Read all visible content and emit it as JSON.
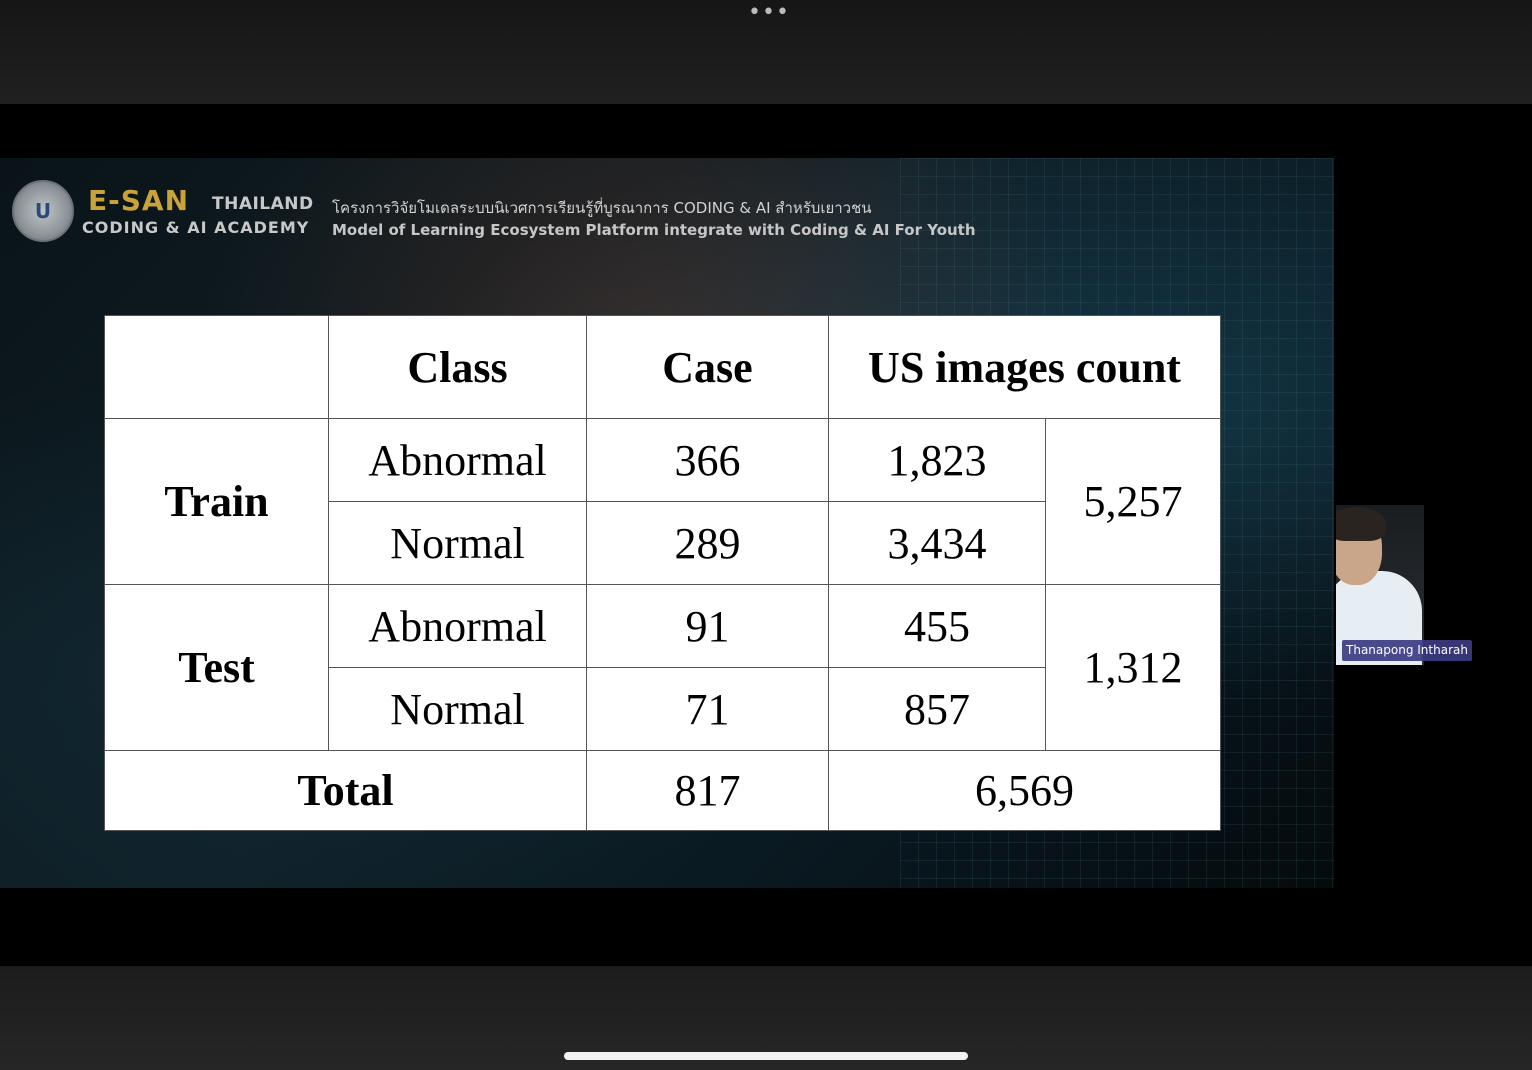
{
  "slide": {
    "brand_esan": "E-SAN",
    "brand_thailand": "THAILAND",
    "brand_academy": "CODING & AI ACADEMY",
    "header_thai": "โครงการวิจัยโมเดลระบบนิเวศการเรียนรู้ที่บูรณาการ CODING & AI สำหรับเยาวชน",
    "header_eng": "Model of Learning Ecosystem Platform integrate with Coding & AI For Youth"
  },
  "table": {
    "headers": {
      "class": "Class",
      "case": "Case",
      "us_images": "US images count"
    },
    "train": {
      "label": "Train",
      "abnormal": {
        "class": "Abnormal",
        "case": "366",
        "images": "1,823"
      },
      "normal": {
        "class": "Normal",
        "case": "289",
        "images": "3,434"
      },
      "subtotal": "5,257"
    },
    "test": {
      "label": "Test",
      "abnormal": {
        "class": "Abnormal",
        "case": "91",
        "images": "455"
      },
      "normal": {
        "class": "Normal",
        "case": "71",
        "images": "857"
      },
      "subtotal": "1,312"
    },
    "total": {
      "label": "Total",
      "case": "817",
      "images": "6,569"
    }
  },
  "participant": {
    "name": "Thanapong Intharah"
  },
  "icons": {
    "more": "more-dots-icon",
    "seal": "university-seal-icon"
  }
}
